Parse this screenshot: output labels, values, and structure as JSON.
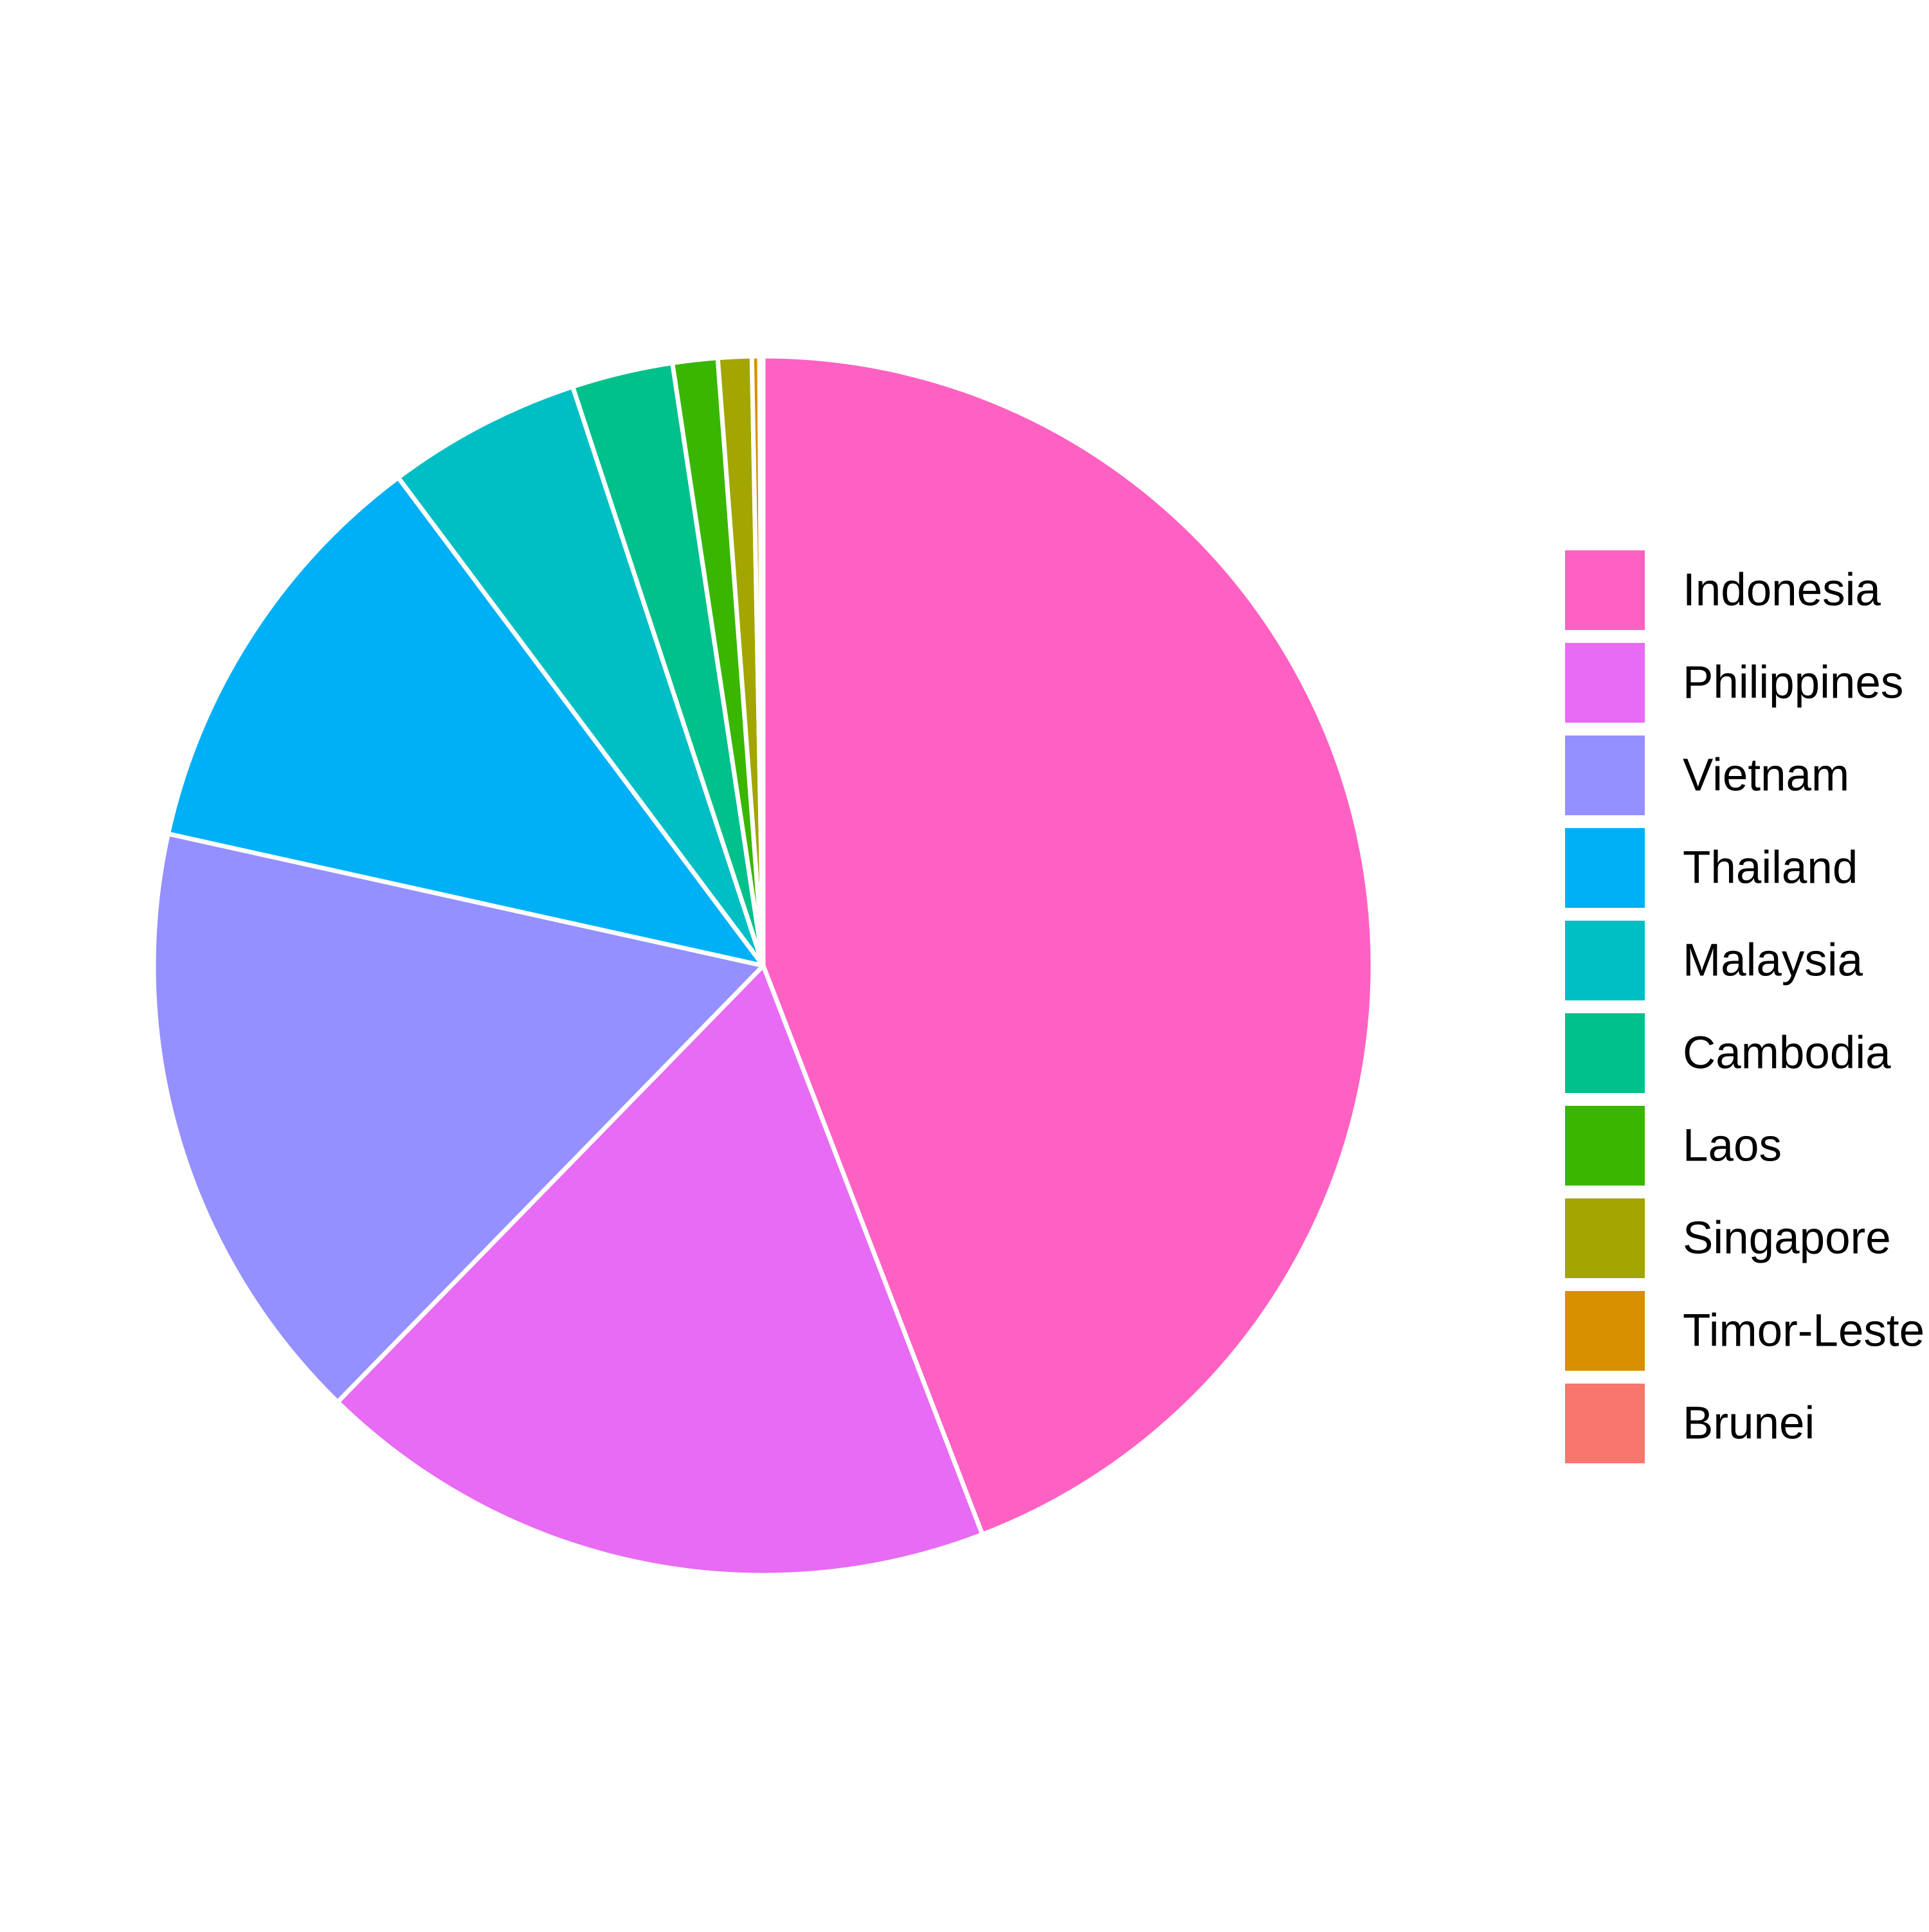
{
  "chart_data": {
    "type": "pie",
    "title": "",
    "legend_position": "right",
    "categories": [
      "Indonesia",
      "Philippines",
      "Vietnam",
      "Thailand",
      "Malaysia",
      "Cambodia",
      "Laos",
      "Singapore",
      "Timor-Leste",
      "Brunei"
    ],
    "values": [
      44.5,
      18.3,
      16.3,
      11.4,
      5.2,
      2.7,
      1.2,
      0.9,
      0.2,
      0.1
    ],
    "colors": [
      "#FF61C3",
      "#E76BF3",
      "#9590FF",
      "#00B0F6",
      "#00BFC4",
      "#00C08B",
      "#39B600",
      "#A3A500",
      "#D89000",
      "#F8766D"
    ],
    "slice_border_color": "#ffffff"
  }
}
